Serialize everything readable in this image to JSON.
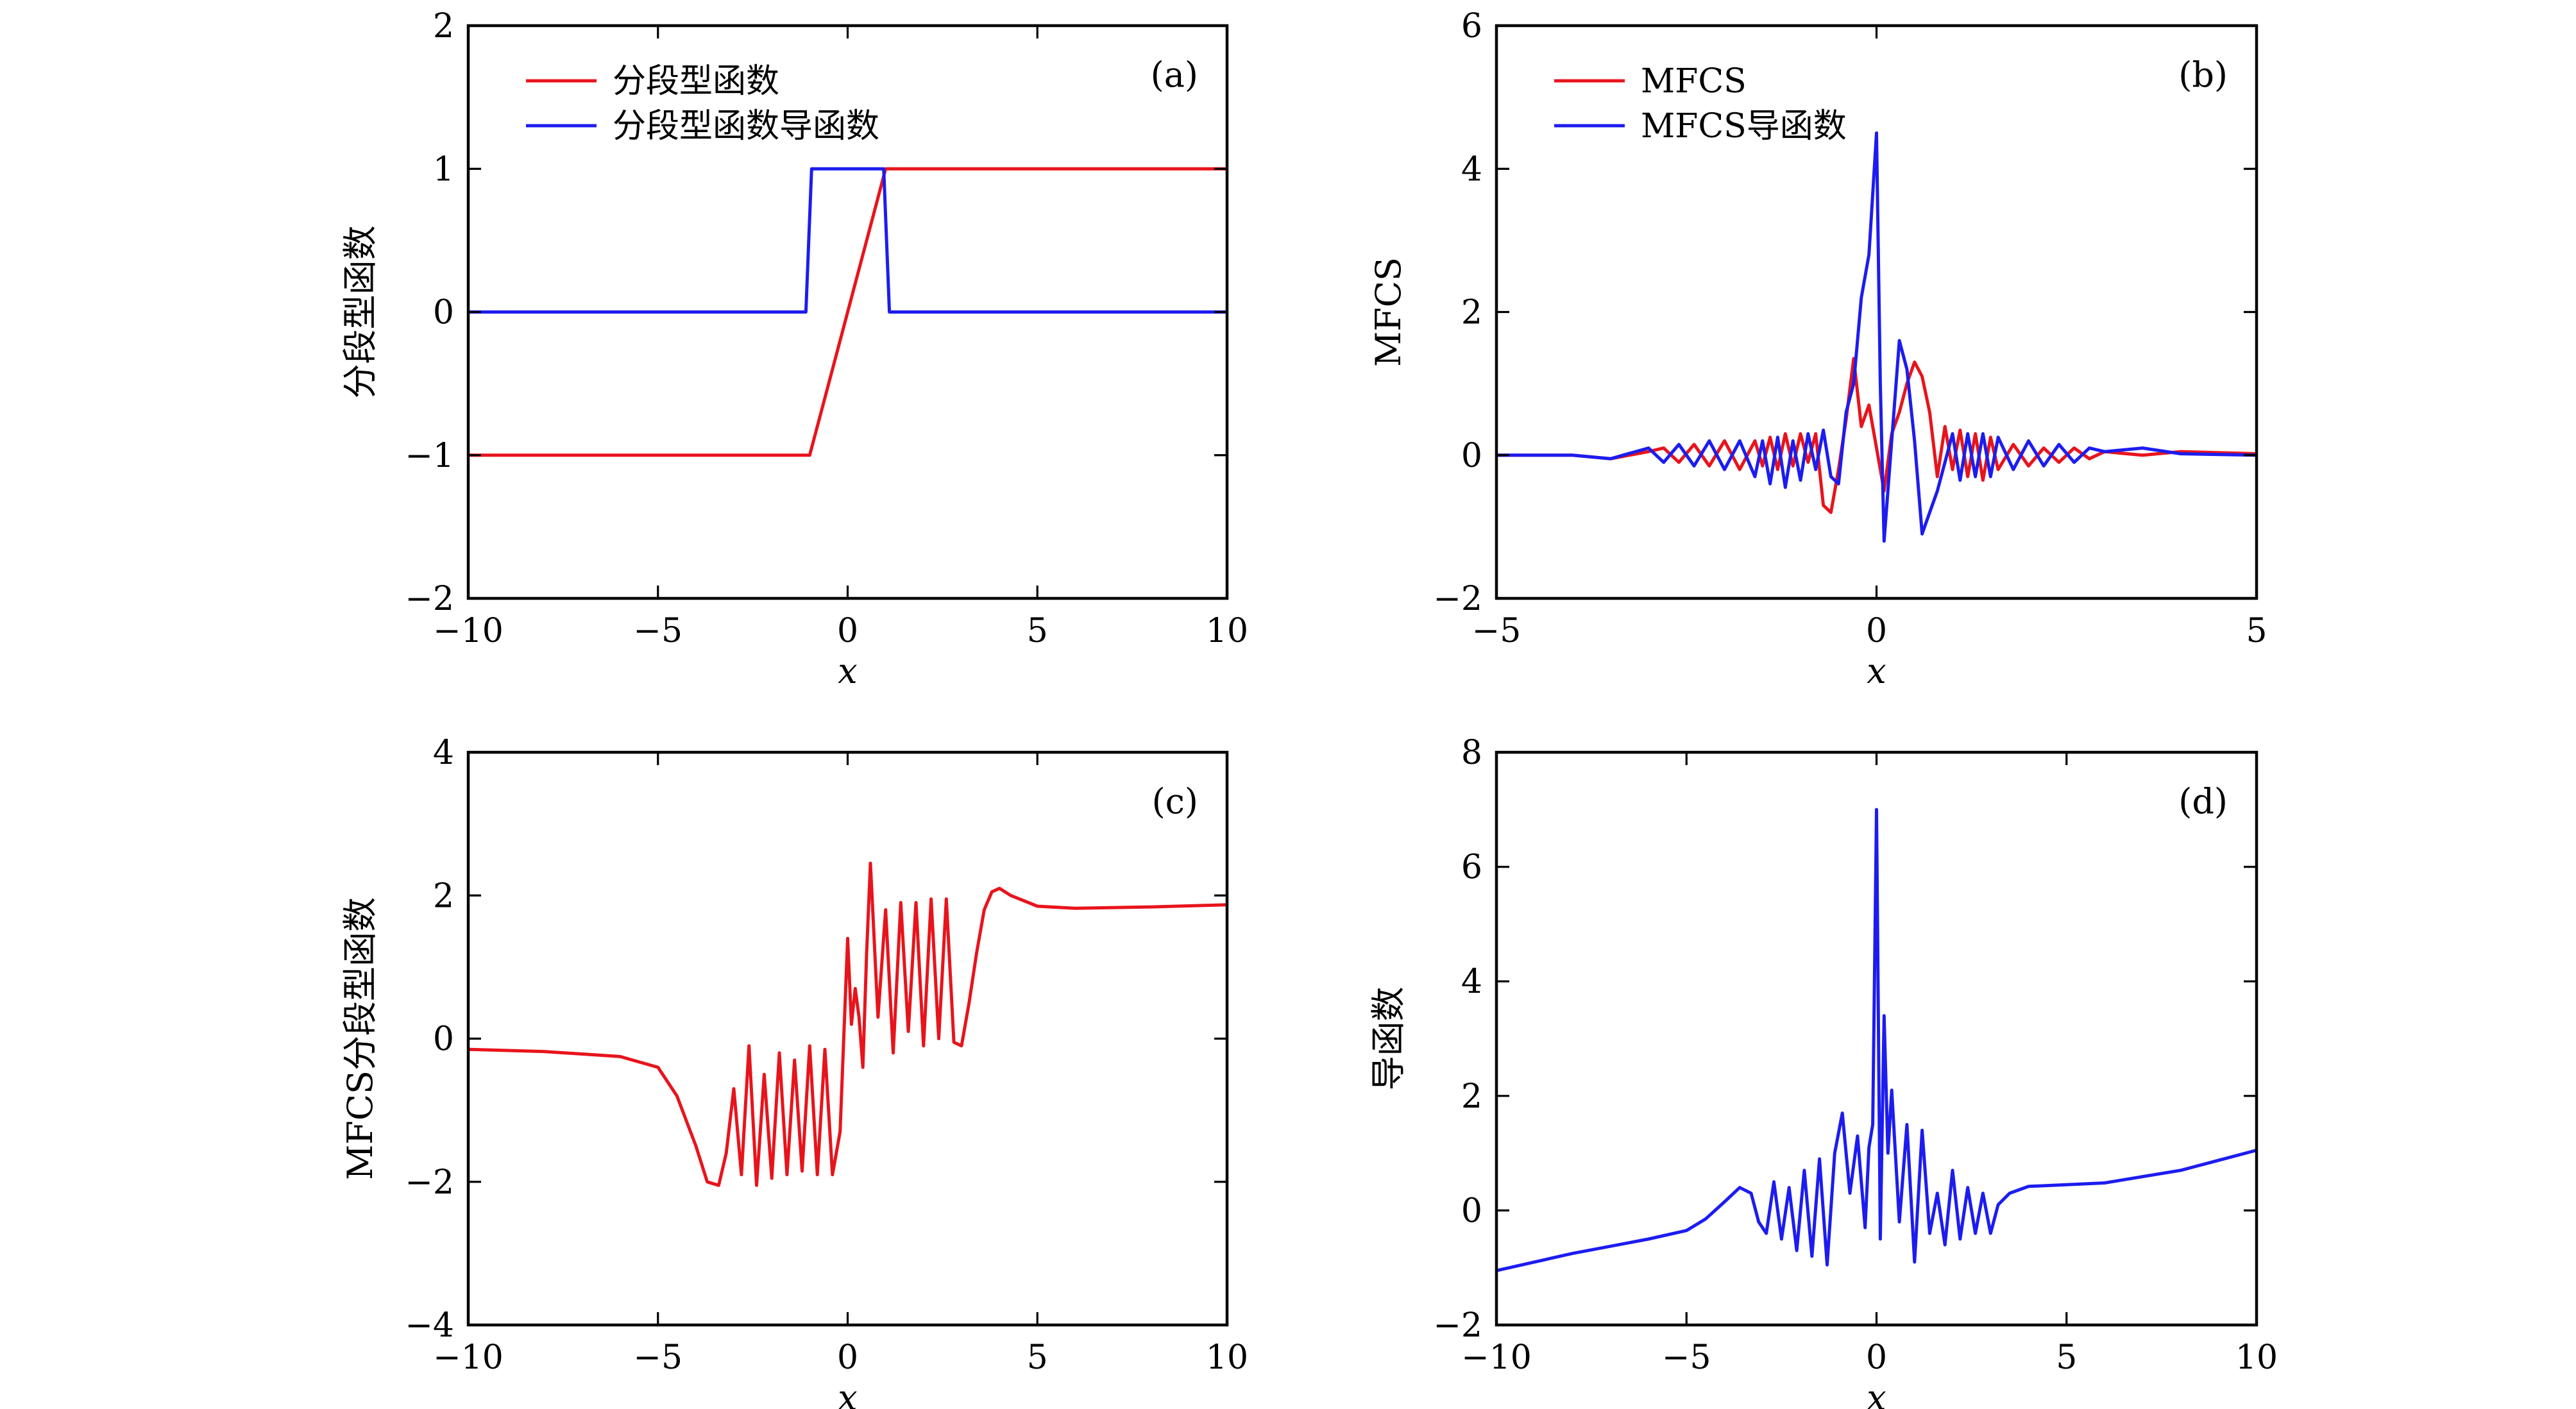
{
  "chart_data": [
    {
      "type": "line",
      "panel_tag": "(a)",
      "xlabel": "x",
      "ylabel": "分段型函数",
      "xlim": [
        -10,
        10
      ],
      "ylim": [
        -2,
        2
      ],
      "xticks": [
        -10,
        -5,
        0,
        5,
        10
      ],
      "yticks": [
        -2,
        -1,
        0,
        1,
        2
      ],
      "xtick_labels": [
        "−10",
        "−5",
        "0",
        "5",
        "10"
      ],
      "ytick_labels": [
        "−2",
        "−1",
        "0",
        "1",
        "2"
      ],
      "legend": "top-left",
      "series": [
        {
          "name": "分段型函数",
          "color": "#e8141c",
          "x": [
            -10,
            -1,
            1,
            10
          ],
          "y": [
            -1,
            -1,
            1,
            1
          ]
        },
        {
          "name": "分段型函数导函数",
          "color": "#1c1cf0",
          "x": [
            -10,
            -1.1,
            -0.95,
            0.95,
            1.1,
            10
          ],
          "y": [
            0,
            0,
            1,
            1,
            0,
            0
          ]
        }
      ]
    },
    {
      "type": "line",
      "panel_tag": "(b)",
      "xlabel": "x",
      "ylabel": "MFCS",
      "xlim": [
        -5,
        5
      ],
      "ylim": [
        -2,
        6
      ],
      "xticks": [
        -5,
        0,
        5
      ],
      "yticks": [
        -2,
        0,
        2,
        4,
        6
      ],
      "xtick_labels": [
        "−5",
        "0",
        "5"
      ],
      "ytick_labels": [
        "−2",
        "0",
        "2",
        "4",
        "6"
      ],
      "legend": "top-left",
      "series": [
        {
          "name": "MFCS",
          "color": "#e8141c",
          "x": [
            -5,
            -4,
            -3.5,
            -3,
            -2.8,
            -2.6,
            -2.4,
            -2.2,
            -2.0,
            -1.8,
            -1.6,
            -1.5,
            -1.4,
            -1.3,
            -1.2,
            -1.1,
            -1.0,
            -0.9,
            -0.8,
            -0.7,
            -0.6,
            -0.5,
            -0.4,
            -0.3,
            -0.2,
            -0.1,
            0,
            0.1,
            0.2,
            0.3,
            0.4,
            0.5,
            0.6,
            0.7,
            0.8,
            0.9,
            1.0,
            1.1,
            1.2,
            1.3,
            1.4,
            1.5,
            1.6,
            1.8,
            2.0,
            2.2,
            2.4,
            2.6,
            2.8,
            3.0,
            3.5,
            4,
            5
          ],
          "y": [
            0,
            0,
            -0.05,
            0.05,
            0.1,
            -0.1,
            0.15,
            -0.15,
            0.2,
            -0.2,
            0.2,
            -0.15,
            0.25,
            -0.2,
            0.3,
            -0.15,
            0.3,
            -0.1,
            0.3,
            -0.7,
            -0.8,
            -0.2,
            0.5,
            1.35,
            0.4,
            0.7,
            0.1,
            -0.5,
            0.3,
            0.6,
            1.0,
            1.3,
            1.1,
            0.6,
            -0.3,
            0.4,
            -0.2,
            0.35,
            -0.3,
            0.3,
            -0.35,
            0.25,
            -0.2,
            0.15,
            -0.15,
            0.1,
            -0.1,
            0.1,
            -0.05,
            0.05,
            0,
            0.05,
            0.02
          ]
        },
        {
          "name": "MFCS导函数",
          "color": "#1c1cf0",
          "x": [
            -5,
            -4,
            -3.5,
            -3,
            -2.8,
            -2.6,
            -2.4,
            -2.2,
            -2.0,
            -1.8,
            -1.6,
            -1.5,
            -1.4,
            -1.3,
            -1.2,
            -1.1,
            -1.0,
            -0.9,
            -0.8,
            -0.7,
            -0.6,
            -0.5,
            -0.4,
            -0.3,
            -0.2,
            -0.1,
            0,
            0.05,
            0.1,
            0.2,
            0.3,
            0.4,
            0.5,
            0.6,
            0.7,
            0.8,
            0.9,
            1.0,
            1.1,
            1.2,
            1.3,
            1.4,
            1.5,
            1.6,
            1.8,
            2.0,
            2.2,
            2.4,
            2.6,
            2.8,
            3.0,
            3.5,
            4,
            5
          ],
          "y": [
            0,
            0,
            -0.05,
            0.1,
            -0.1,
            0.15,
            -0.15,
            0.2,
            -0.2,
            0.2,
            -0.3,
            0.2,
            -0.4,
            0.25,
            -0.45,
            0.2,
            -0.35,
            0.3,
            -0.2,
            0.35,
            -0.3,
            -0.4,
            0.6,
            1.0,
            2.2,
            2.8,
            4.5,
            1.0,
            -1.2,
            0.2,
            1.6,
            1.2,
            0.2,
            -1.1,
            -0.8,
            -0.5,
            -0.1,
            0.3,
            -0.35,
            0.3,
            -0.3,
            0.3,
            -0.3,
            0.25,
            -0.2,
            0.2,
            -0.15,
            0.15,
            -0.1,
            0.1,
            0.05,
            0.1,
            0.02,
            0
          ]
        }
      ]
    },
    {
      "type": "line",
      "panel_tag": "(c)",
      "xlabel": "x",
      "ylabel": "MFCS分段型函数",
      "xlim": [
        -10,
        10
      ],
      "ylim": [
        -4,
        4
      ],
      "xticks": [
        -10,
        -5,
        0,
        5,
        10
      ],
      "yticks": [
        -4,
        -2,
        0,
        2,
        4
      ],
      "xtick_labels": [
        "−10",
        "−5",
        "0",
        "5",
        "10"
      ],
      "ytick_labels": [
        "−4",
        "−2",
        "0",
        "2",
        "4"
      ],
      "series": [
        {
          "color": "#e8141c",
          "x": [
            -10,
            -8,
            -6,
            -5,
            -4.5,
            -4,
            -3.7,
            -3.4,
            -3.2,
            -3.0,
            -2.8,
            -2.6,
            -2.4,
            -2.2,
            -2.0,
            -1.8,
            -1.6,
            -1.4,
            -1.2,
            -1.0,
            -0.8,
            -0.6,
            -0.4,
            -0.2,
            0,
            0.1,
            0.2,
            0.3,
            0.4,
            0.5,
            0.6,
            0.8,
            1.0,
            1.2,
            1.4,
            1.6,
            1.8,
            2.0,
            2.2,
            2.4,
            2.6,
            2.8,
            3.0,
            3.2,
            3.4,
            3.6,
            3.8,
            4.0,
            4.3,
            5,
            6,
            8,
            10
          ],
          "y": [
            -0.15,
            -0.18,
            -0.25,
            -0.4,
            -0.8,
            -1.5,
            -2.0,
            -2.05,
            -1.6,
            -0.7,
            -1.9,
            -0.1,
            -2.05,
            -0.5,
            -1.95,
            -0.2,
            -1.9,
            -0.3,
            -1.85,
            -0.1,
            -1.9,
            -0.15,
            -1.9,
            -1.3,
            1.4,
            0.2,
            0.7,
            0.3,
            -0.4,
            1.2,
            2.45,
            0.3,
            1.8,
            -0.2,
            1.9,
            0.1,
            1.9,
            -0.1,
            1.95,
            0.0,
            1.95,
            -0.05,
            -0.1,
            0.5,
            1.2,
            1.8,
            2.05,
            2.1,
            2.0,
            1.85,
            1.82,
            1.84,
            1.87
          ]
        }
      ]
    },
    {
      "type": "line",
      "panel_tag": "(d)",
      "xlabel": "x",
      "ylabel": "导函数",
      "xlim": [
        -10,
        10
      ],
      "ylim": [
        -2,
        8
      ],
      "xticks": [
        -10,
        -5,
        0,
        5,
        10
      ],
      "yticks": [
        -2,
        0,
        2,
        4,
        6,
        8
      ],
      "xtick_labels": [
        "−10",
        "−5",
        "0",
        "5",
        "10"
      ],
      "ytick_labels": [
        "−2",
        "0",
        "2",
        "4",
        "6",
        "8"
      ],
      "series": [
        {
          "color": "#1c1cf0",
          "x": [
            -10,
            -8,
            -6,
            -5,
            -4.5,
            -4,
            -3.6,
            -3.3,
            -3.1,
            -2.9,
            -2.7,
            -2.5,
            -2.3,
            -2.1,
            -1.9,
            -1.7,
            -1.5,
            -1.3,
            -1.1,
            -0.9,
            -0.7,
            -0.5,
            -0.3,
            -0.2,
            -0.1,
            0,
            0.1,
            0.2,
            0.3,
            0.4,
            0.6,
            0.8,
            1.0,
            1.2,
            1.4,
            1.6,
            1.8,
            2.0,
            2.2,
            2.4,
            2.6,
            2.8,
            3.0,
            3.2,
            3.5,
            4,
            5,
            6,
            8,
            10
          ],
          "y": [
            -1.05,
            -0.75,
            -0.5,
            -0.35,
            -0.15,
            0.15,
            0.4,
            0.3,
            -0.2,
            -0.4,
            0.5,
            -0.5,
            0.4,
            -0.7,
            0.7,
            -0.8,
            0.9,
            -0.95,
            1.0,
            1.7,
            0.3,
            1.3,
            -0.3,
            1.1,
            1.5,
            7.0,
            -0.5,
            3.4,
            1.0,
            2.1,
            -0.2,
            1.5,
            -0.9,
            1.4,
            -0.4,
            0.3,
            -0.6,
            0.7,
            -0.5,
            0.4,
            -0.4,
            0.3,
            -0.4,
            0.1,
            0.3,
            0.42,
            0.45,
            0.48,
            0.7,
            1.05
          ]
        }
      ]
    }
  ]
}
